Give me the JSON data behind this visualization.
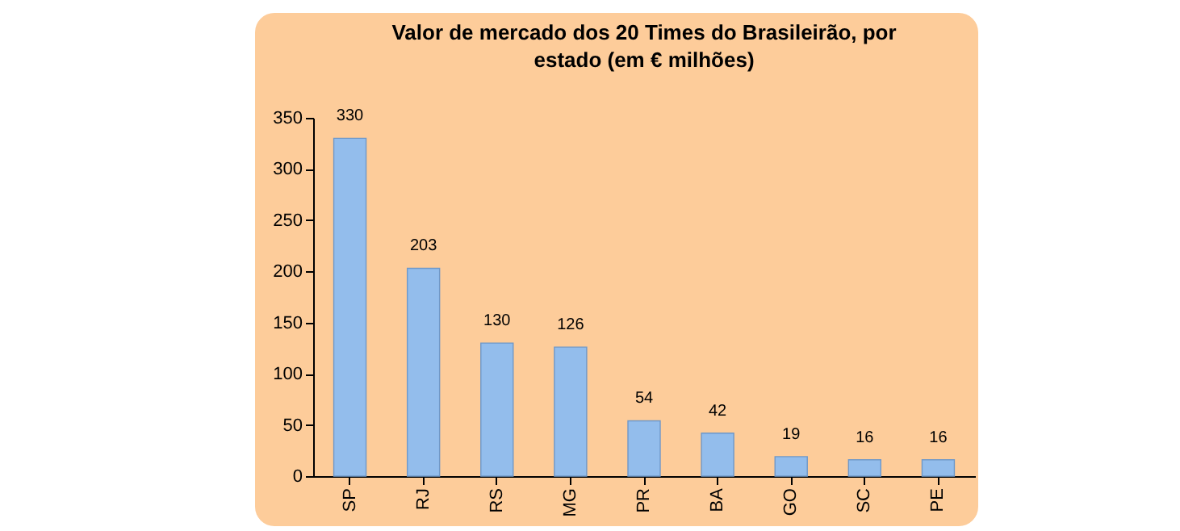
{
  "chart_data": {
    "type": "bar",
    "title": "Valor de mercado dos 20 Times do Brasileirão, por estado (em € milhões)",
    "categories": [
      "SP",
      "RJ",
      "RS",
      "MG",
      "PR",
      "BA",
      "GO",
      "SC",
      "PE"
    ],
    "values": [
      330,
      203,
      130,
      126,
      54,
      42,
      19,
      16,
      16
    ],
    "color": "#93bdec",
    "ylim": [
      0,
      350
    ],
    "yticks": [
      0,
      50,
      100,
      150,
      200,
      250,
      300,
      350
    ],
    "data_labels": true
  }
}
